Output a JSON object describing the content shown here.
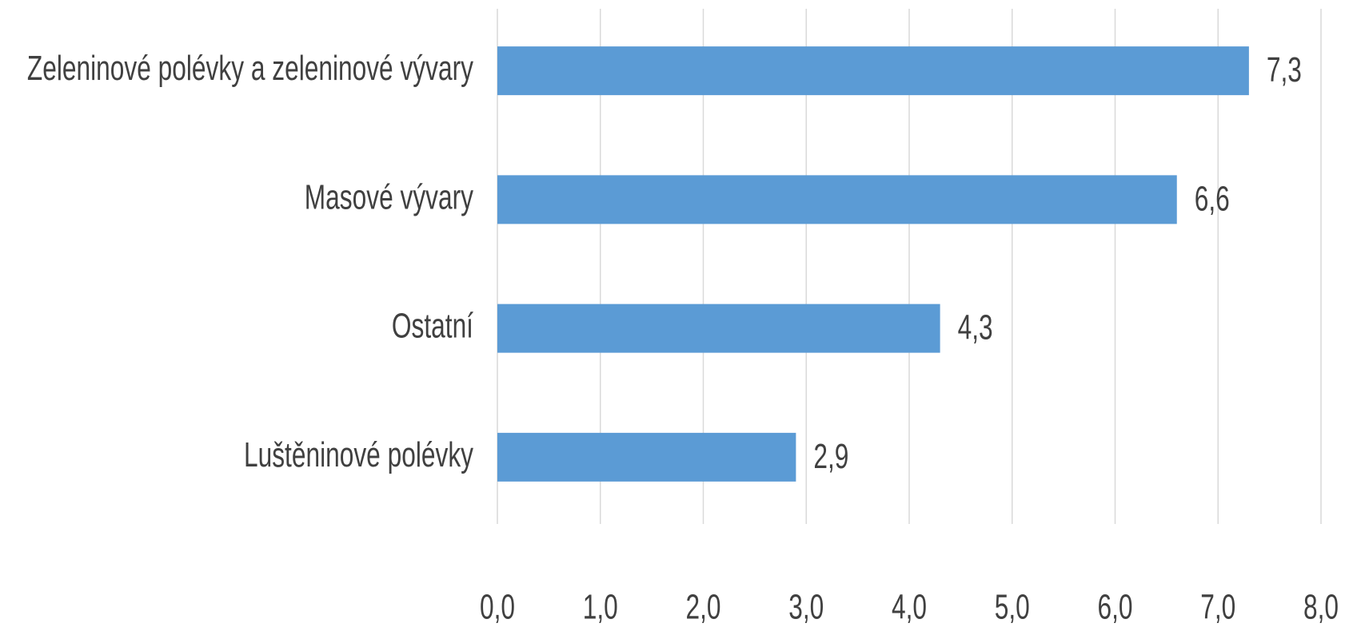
{
  "chart_data": {
    "type": "bar",
    "orientation": "horizontal",
    "categories": [
      "Zeleninové polévky a zeleninové vývary",
      "Masové vývary",
      "Ostatní",
      "Luštěninové polévky"
    ],
    "values": [
      7.3,
      6.6,
      4.3,
      2.9
    ],
    "value_labels": [
      "7,3",
      "6,6",
      "4,3",
      "2,9"
    ],
    "color": "#5b9bd5",
    "xlim": [
      0,
      8
    ],
    "xticks": [
      {
        "value": 0,
        "label": "0,0"
      },
      {
        "value": 1,
        "label": "1,0"
      },
      {
        "value": 2,
        "label": "2,0"
      },
      {
        "value": 3,
        "label": "3,0"
      },
      {
        "value": 4,
        "label": "4,0"
      },
      {
        "value": 5,
        "label": "5,0"
      },
      {
        "value": 6,
        "label": "6,0"
      },
      {
        "value": 7,
        "label": "7,0"
      },
      {
        "value": 8,
        "label": "8,0"
      }
    ],
    "grid": true
  }
}
